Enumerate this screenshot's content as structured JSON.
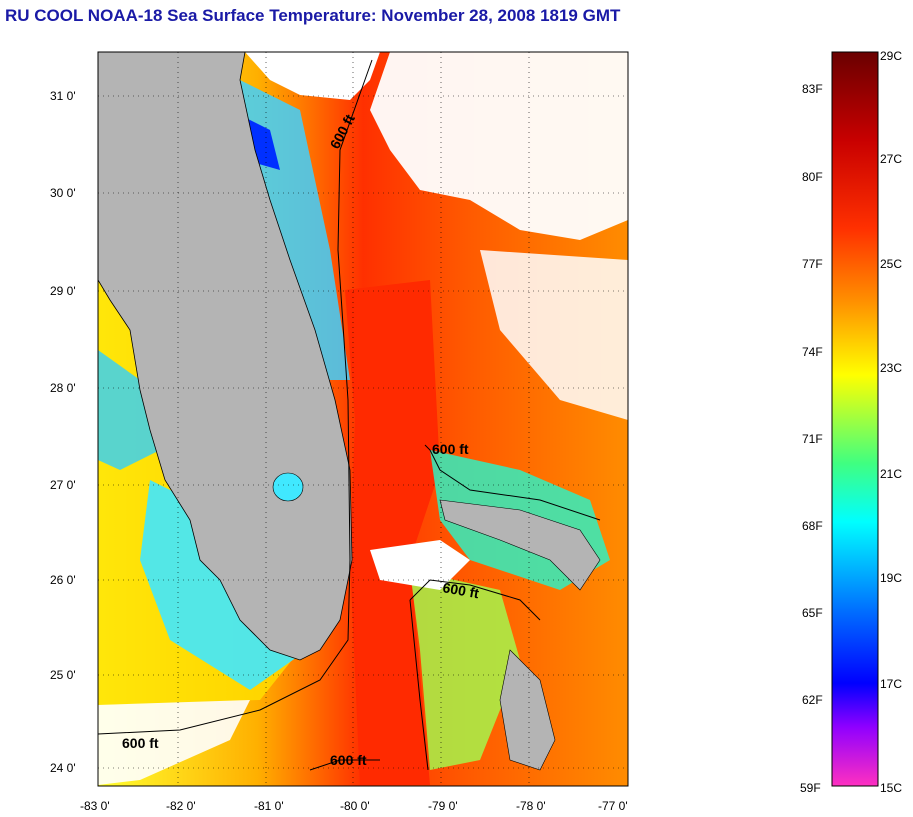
{
  "title": "RU COOL  NOAA-18  Sea Surface Temperature:  November 28, 2008 1819 GMT",
  "map": {
    "lat_ticks": [
      "31 0'",
      "30 0'",
      "29 0'",
      "28 0'",
      "27 0'",
      "26 0'",
      "25 0'",
      "24 0'"
    ],
    "lon_ticks": [
      "-83 0'",
      "-82 0'",
      "-81 0'",
      "-80 0'",
      "-79 0'",
      "-78 0'",
      "-77 0'"
    ],
    "contour_labels": [
      "600 ft",
      "600 ft",
      "600 ft",
      "600 ft",
      "600 ft"
    ],
    "land_color": "#b4b4b4",
    "cloud_color": "#ffffff"
  },
  "colorbar": {
    "fahrenheit_labels": [
      "83F",
      "80F",
      "77F",
      "74F",
      "71F",
      "68F",
      "65F",
      "62F",
      "59F"
    ],
    "celsius_labels": [
      "29C",
      "27C",
      "25C",
      "23C",
      "21C",
      "19C",
      "17C",
      "15C"
    ],
    "colors": [
      "#6a0000",
      "#c80000",
      "#ff2a00",
      "#ff7a00",
      "#ffb000",
      "#ffff00",
      "#a0ff40",
      "#30ff90",
      "#00ffff",
      "#00a0ff",
      "#0030ff",
      "#8000ff",
      "#ff30c0"
    ]
  }
}
